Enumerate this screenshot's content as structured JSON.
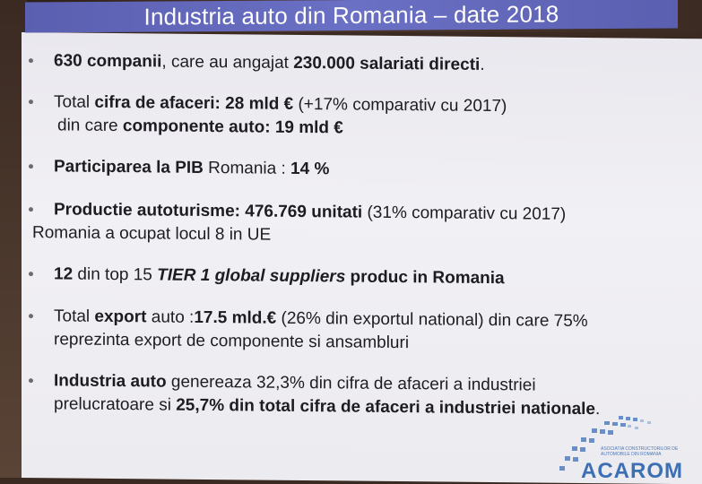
{
  "slide": {
    "title": "Industria auto din Romania – date 2018",
    "bullets": [
      {
        "line1": [
          {
            "t": "630 companii",
            "b": true
          },
          {
            "t": ", care au angajat "
          },
          {
            "t": "230.000 salariati directi",
            "b": true
          },
          {
            "t": "."
          }
        ]
      },
      {
        "line1": [
          {
            "t": "Total "
          },
          {
            "t": "cifra de afaceri: 28 mld €",
            "b": true
          },
          {
            "t": " (+17% comparativ cu 2017)"
          }
        ],
        "line2": [
          {
            "t": " din care "
          },
          {
            "t": "componente auto: 19 mld €",
            "b": true
          }
        ]
      },
      {
        "line1": [
          {
            "t": "Participarea la PIB",
            "b": true
          },
          {
            "t": " Romania : "
          },
          {
            "t": "14 %",
            "b": true
          }
        ]
      },
      {
        "line1": [
          {
            "t": "Productie autoturisme: 476.769 unitati",
            "b": true
          },
          {
            "t": " (31% comparativ cu 2017)"
          }
        ],
        "line2": [
          {
            "t": "Romania a ocupat locul 8 in UE"
          }
        ]
      },
      {
        "line1": [
          {
            "t": "12",
            "b": true
          },
          {
            "t": " din top 15 "
          },
          {
            "t": "TIER 1 global suppliers",
            "i": true
          },
          {
            "t": " produc in Romania",
            "b": true
          }
        ]
      },
      {
        "line1": [
          {
            "t": "Total "
          },
          {
            "t": "export",
            "b": true
          },
          {
            "t": " auto :"
          },
          {
            "t": "17.5 mld.€",
            "b": true
          },
          {
            "t": " (26% din exportul national) din care 75%"
          }
        ],
        "line2": [
          {
            "t": "reprezinta export de componente si ansambluri"
          }
        ]
      },
      {
        "line1": [
          {
            "t": "Industria auto",
            "b": true
          },
          {
            "t": " genereaza 32,3% din cifra de afaceri a industriei"
          }
        ],
        "line2": [
          {
            "t": "prelucratoare si "
          },
          {
            "t": "25,7% din total cifra de afaceri a industriei nationale",
            "b": true
          },
          {
            "t": "."
          }
        ]
      }
    ]
  },
  "logo": {
    "name": "ACAROM",
    "tagline": "ASOCIATIA CONSTRUCTORILOR DE AUTOMOBILE DIN ROMANIA"
  }
}
